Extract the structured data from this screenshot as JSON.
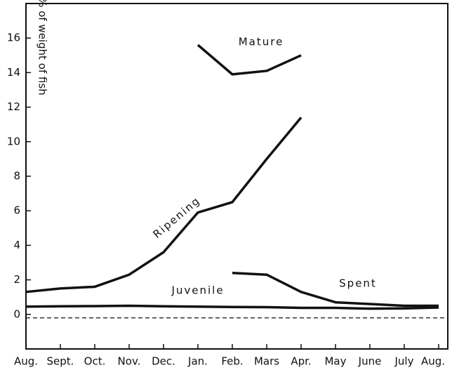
{
  "chart_data": {
    "type": "line",
    "y_axis_label": "% of weight of fish",
    "categories": [
      "Aug.",
      "Sept.",
      "Oct.",
      "Nov.",
      "Dec.",
      "Jan.",
      "Feb.",
      "Mars",
      "Apr.",
      "May",
      "June",
      "July",
      "Aug."
    ],
    "series": [
      {
        "name": "Mature",
        "color": "#111111",
        "values": [
          null,
          null,
          null,
          null,
          null,
          15.6,
          13.9,
          14.1,
          15.0,
          null,
          null,
          null,
          null
        ]
      },
      {
        "name": "Ripening",
        "color": "#111111",
        "values": [
          1.3,
          1.5,
          1.6,
          2.3,
          3.6,
          5.9,
          6.5,
          9.0,
          11.4,
          null,
          null,
          null,
          null
        ]
      },
      {
        "name": "Spent",
        "color": "#111111",
        "values": [
          null,
          null,
          null,
          null,
          null,
          null,
          2.4,
          2.3,
          1.3,
          0.7,
          0.6,
          0.5,
          0.5
        ]
      },
      {
        "name": "Juvenile",
        "color": "#111111",
        "values": [
          0.45,
          0.47,
          0.48,
          0.5,
          0.47,
          0.45,
          0.43,
          0.42,
          0.38,
          0.38,
          0.33,
          0.35,
          0.4
        ]
      }
    ],
    "dashed_line": -0.2,
    "ylim": [
      -2,
      18
    ],
    "yticks": [
      0,
      2,
      4,
      6,
      8,
      10,
      12,
      14,
      16
    ]
  }
}
